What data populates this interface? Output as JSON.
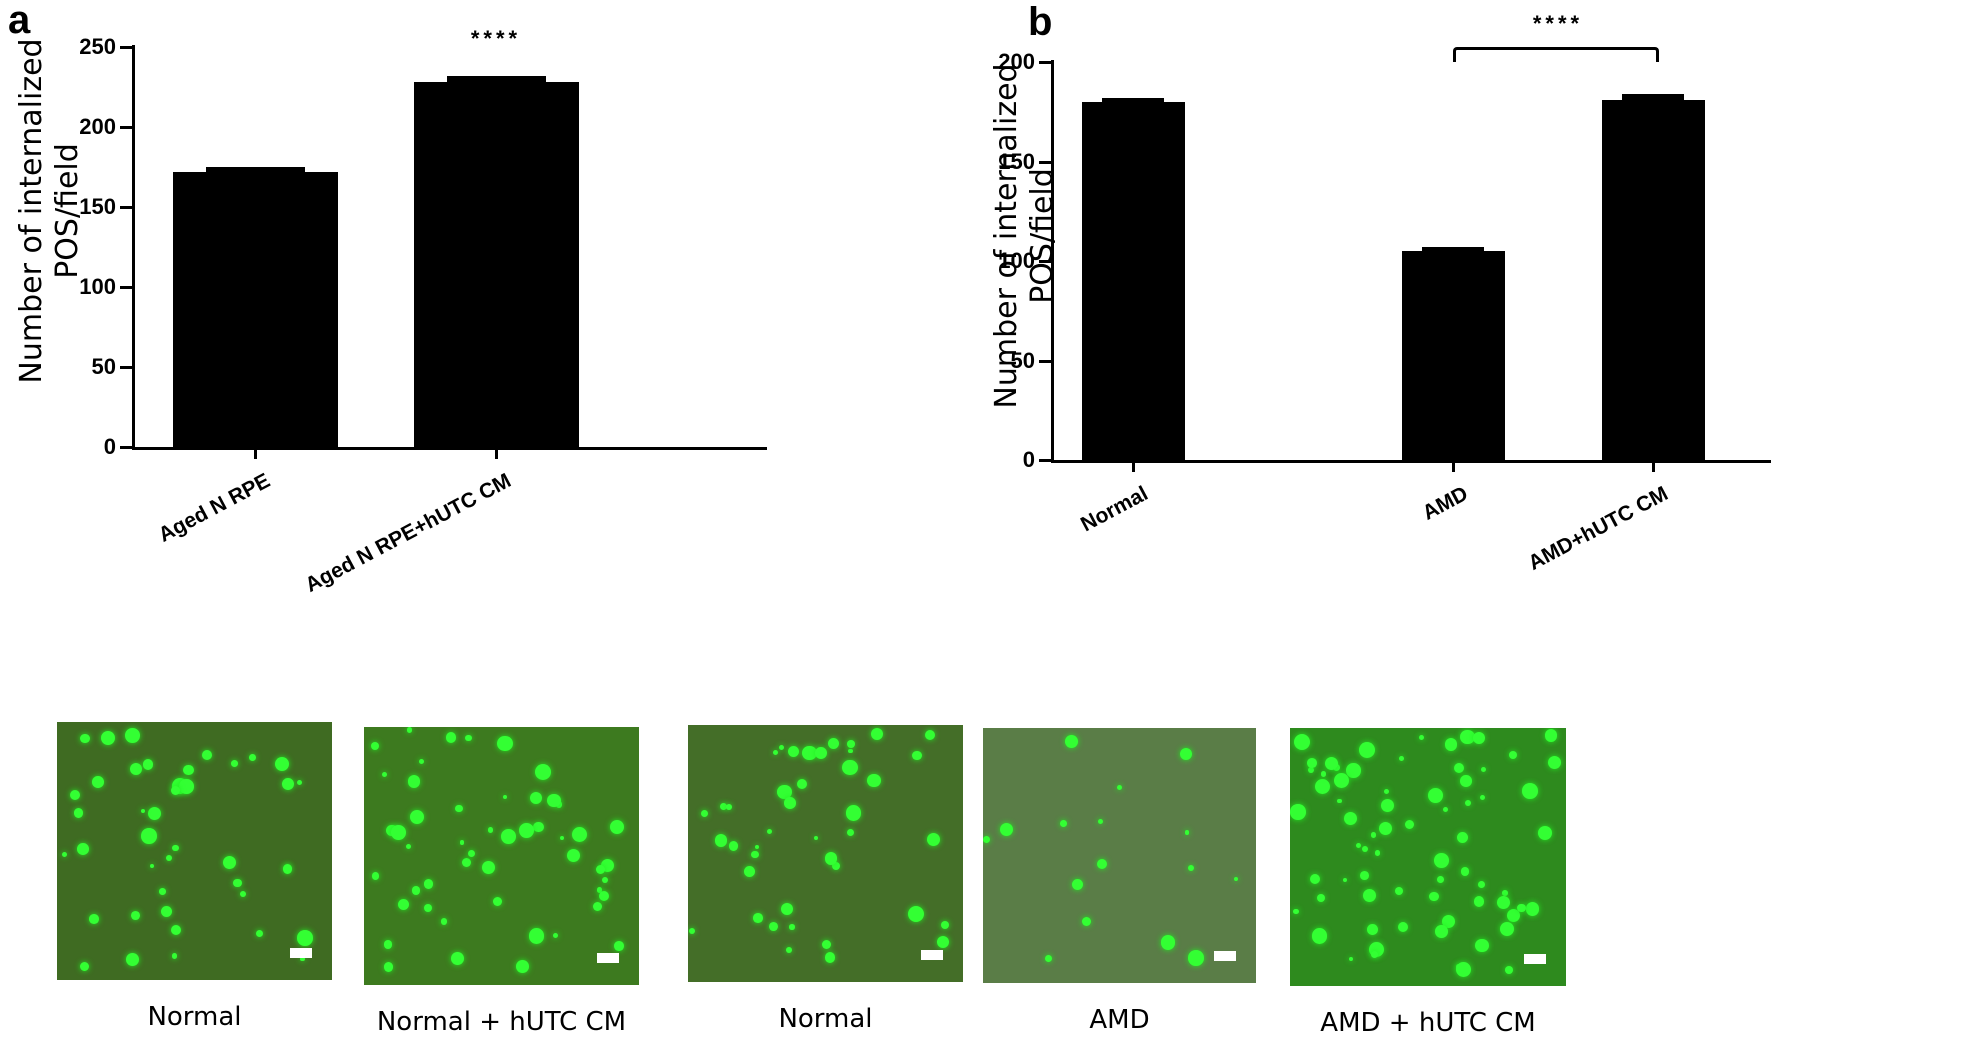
{
  "chart_data": [
    {
      "panel": "a",
      "type": "bar",
      "title": "",
      "xlabel": "",
      "ylabel": "Number of internalized POS/field",
      "ylabel_lines": [
        "Number of internalized",
        "POS/field"
      ],
      "categories": [
        "Aged N RPE",
        "Aged N RPE+hUTC CM"
      ],
      "values": [
        172,
        228
      ],
      "error": [
        3,
        4
      ],
      "ylim": [
        0,
        250
      ],
      "yticks": [
        0,
        50,
        100,
        150,
        200,
        250
      ],
      "annotations": [
        {
          "text": "****",
          "over": "Aged N RPE+hUTC CM"
        }
      ],
      "grid": false,
      "legend": null
    },
    {
      "panel": "b",
      "type": "bar",
      "title": "",
      "xlabel": "",
      "ylabel": "Number of internalized POS/field",
      "ylabel_lines": [
        "Number of internalized",
        "POS/field"
      ],
      "categories": [
        "Normal",
        "AMD",
        "AMD+hUTC CM"
      ],
      "values": [
        180,
        105,
        181
      ],
      "error": [
        2,
        2,
        3
      ],
      "ylim": [
        0,
        200
      ],
      "yticks": [
        0,
        50,
        100,
        150,
        200
      ],
      "annotations": [
        {
          "text": "****",
          "bracket": [
            "AMD",
            "AMD+hUTC CM"
          ]
        }
      ],
      "grid": false,
      "legend": null
    }
  ],
  "panels": {
    "a": {
      "letter": "a"
    },
    "b": {
      "letter": "b"
    }
  },
  "micrographs": [
    {
      "caption": "Normal"
    },
    {
      "caption": "Normal + hUTC CM"
    },
    {
      "caption": "Normal"
    },
    {
      "caption": "AMD"
    },
    {
      "caption": "AMD + hUTC CM"
    }
  ],
  "colors": {
    "bar": "#000000",
    "fluorescence": "#33ff33"
  }
}
